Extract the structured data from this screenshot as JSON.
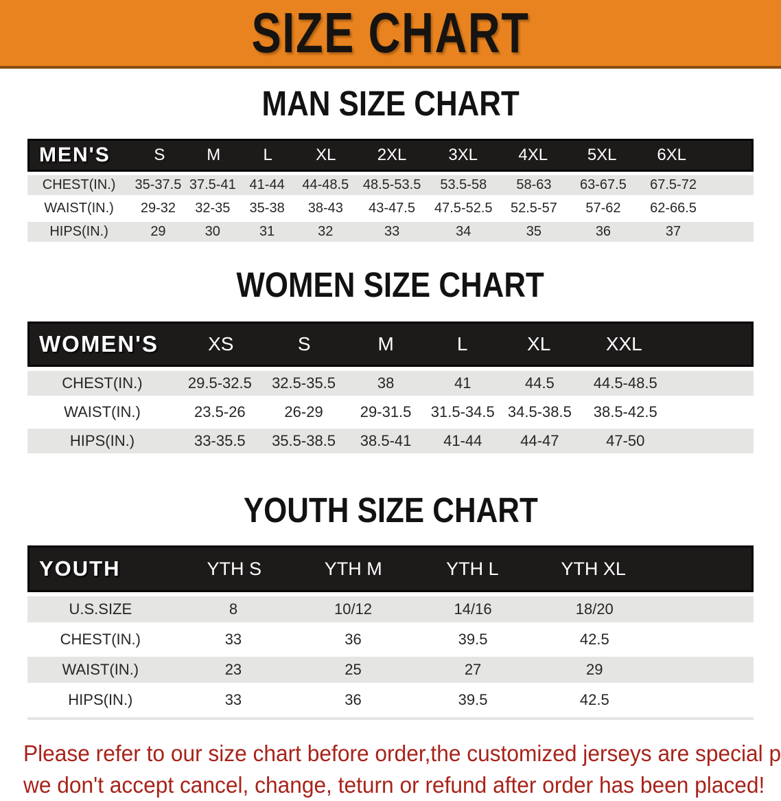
{
  "theme": {
    "banner_bg": "#E8831F",
    "banner_border": "#8a4c10",
    "header_bar_bg": "#1d1a1a",
    "header_bar_border": "#060505",
    "row_shaded_bg": "#E5E5E3",
    "text_dark": "#262626",
    "disclaimer_red": "#A7231A"
  },
  "banner": {
    "title": "SIZE CHART"
  },
  "sections": [
    {
      "heading": "MAN SIZE CHART",
      "table": {
        "header_label": "MEN'S",
        "columns": [
          "S",
          "M",
          "L",
          "XL",
          "2XL",
          "3XL",
          "4XL",
          "5XL",
          "6XL"
        ],
        "rows": [
          {
            "label": "CHEST(IN.)",
            "shaded": true,
            "values": [
              "35-37.5",
              "37.5-41",
              "41-44",
              "44-48.5",
              "48.5-53.5",
              "53.5-58",
              "58-63",
              "63-67.5",
              "67.5-72"
            ]
          },
          {
            "label": "WAIST(IN.)",
            "shaded": false,
            "values": [
              "29-32",
              "32-35",
              "35-38",
              "38-43",
              "43-47.5",
              "47.5-52.5",
              "52.5-57",
              "57-62",
              "62-66.5"
            ]
          },
          {
            "label": "HIPS(IN.)",
            "shaded": true,
            "values": [
              "29",
              "30",
              "31",
              "32",
              "33",
              "34",
              "35",
              "36",
              "37"
            ]
          }
        ]
      }
    },
    {
      "heading": "WOMEN SIZE CHART",
      "table": {
        "header_label": "WOMEN'S",
        "columns": [
          "XS",
          "S",
          "M",
          "L",
          "XL",
          "XXL"
        ],
        "rows": [
          {
            "label": "CHEST(IN.)",
            "shaded": true,
            "values": [
              "29.5-32.5",
              "32.5-35.5",
              "38",
              "41",
              "44.5",
              "44.5-48.5"
            ]
          },
          {
            "label": "WAIST(IN.)",
            "shaded": false,
            "values": [
              "23.5-26",
              "26-29",
              "29-31.5",
              "31.5-34.5",
              "34.5-38.5",
              "38.5-42.5"
            ]
          },
          {
            "label": "HIPS(IN.)",
            "shaded": true,
            "values": [
              "33-35.5",
              "35.5-38.5",
              "38.5-41",
              "41-44",
              "44-47",
              "47-50"
            ]
          }
        ]
      }
    },
    {
      "heading": "YOUTH SIZE CHART",
      "table": {
        "header_label": "YOUTH",
        "columns": [
          "YTH S",
          "YTH M",
          "YTH L",
          "YTH XL"
        ],
        "rows": [
          {
            "label": "U.S.SIZE",
            "shaded": true,
            "values": [
              "8",
              "10/12",
              "14/16",
              "18/20"
            ]
          },
          {
            "label": "CHEST(IN.)",
            "shaded": false,
            "values": [
              "33",
              "36",
              "39.5",
              "42.5"
            ]
          },
          {
            "label": "WAIST(IN.)",
            "shaded": true,
            "values": [
              "23",
              "25",
              "27",
              "29"
            ]
          },
          {
            "label": "HIPS(IN.)",
            "shaded": false,
            "values": [
              "33",
              "36",
              "39.5",
              "42.5"
            ]
          }
        ]
      }
    }
  ],
  "disclaimer": {
    "line1": "Please refer to our size chart before order,the customized jerseys are special products,",
    "line2": "we don't accept cancel, change, teturn or refund after order has been placed!"
  }
}
